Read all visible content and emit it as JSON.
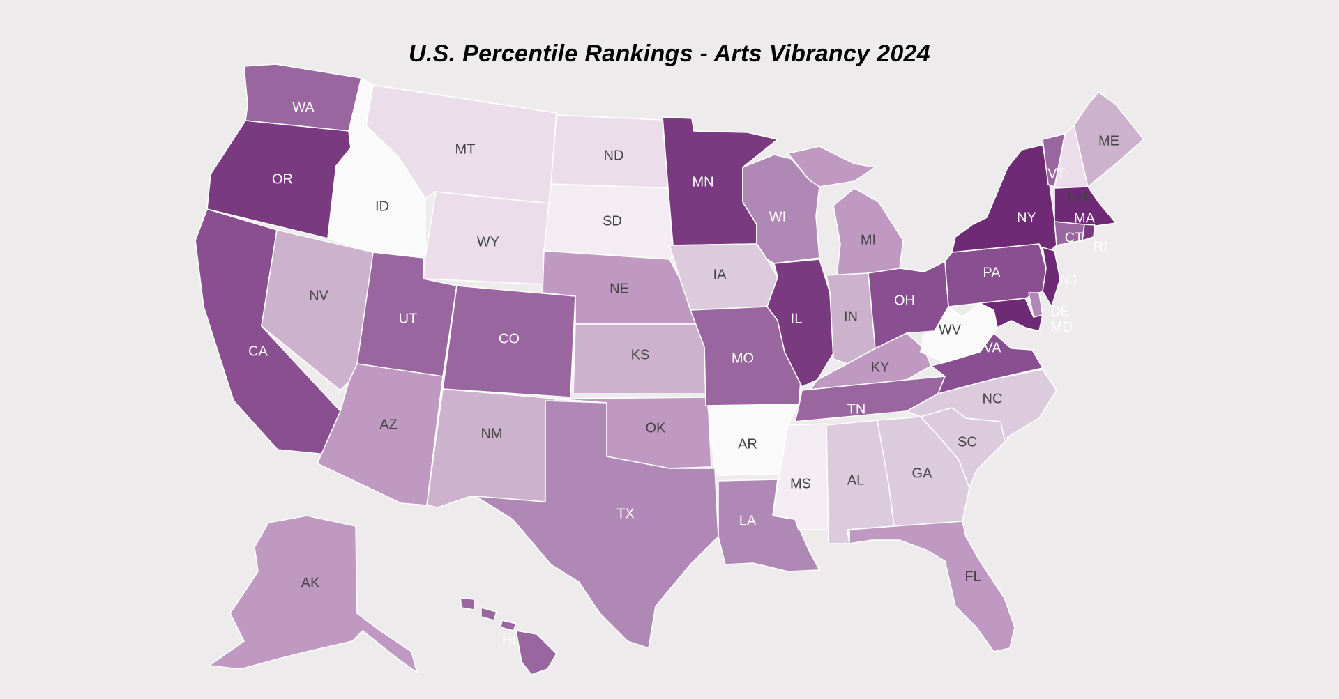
{
  "title": "U.S. Percentile Rankings - Arts Vibrancy 2024",
  "colors": {
    "background": "#edebec",
    "scale": [
      "#fbfafb",
      "#f3ecf2",
      "#ebdeea",
      "#dccbdc",
      "#cdb2cd",
      "#bf99c2",
      "#b088b5",
      "#9a66a0",
      "#8a4f90",
      "#7a3a80",
      "#6e2a75"
    ]
  },
  "states": [
    {
      "code": "WA",
      "label": "WA",
      "level": 7
    },
    {
      "code": "OR",
      "label": "OR",
      "level": 9
    },
    {
      "code": "CA",
      "label": "CA",
      "level": 8
    },
    {
      "code": "ID",
      "label": "ID",
      "level": 0
    },
    {
      "code": "NV",
      "label": "NV",
      "level": 4
    },
    {
      "code": "MT",
      "label": "MT",
      "level": 2
    },
    {
      "code": "WY",
      "label": "WY",
      "level": 2
    },
    {
      "code": "UT",
      "label": "UT",
      "level": 7
    },
    {
      "code": "AZ",
      "label": "AZ",
      "level": 5
    },
    {
      "code": "CO",
      "label": "CO",
      "level": 7
    },
    {
      "code": "NM",
      "label": "NM",
      "level": 4
    },
    {
      "code": "ND",
      "label": "ND",
      "level": 2
    },
    {
      "code": "SD",
      "label": "SD",
      "level": 1
    },
    {
      "code": "NE",
      "label": "NE",
      "level": 5
    },
    {
      "code": "KS",
      "label": "KS",
      "level": 4
    },
    {
      "code": "OK",
      "label": "OK",
      "level": 5
    },
    {
      "code": "TX",
      "label": "TX",
      "level": 6
    },
    {
      "code": "MN",
      "label": "MN",
      "level": 9
    },
    {
      "code": "IA",
      "label": "IA",
      "level": 3
    },
    {
      "code": "MO",
      "label": "MO",
      "level": 7
    },
    {
      "code": "AR",
      "label": "AR",
      "level": 0
    },
    {
      "code": "LA",
      "label": "LA",
      "level": 6
    },
    {
      "code": "WI",
      "label": "WI",
      "level": 6
    },
    {
      "code": "IL",
      "label": "IL",
      "level": 9
    },
    {
      "code": "MS",
      "label": "MS",
      "level": 1
    },
    {
      "code": "MI",
      "label": "MI",
      "level": 5
    },
    {
      "code": "IN",
      "label": "IN",
      "level": 4
    },
    {
      "code": "KY",
      "label": "KY",
      "level": 5
    },
    {
      "code": "TN",
      "label": "TN",
      "level": 7
    },
    {
      "code": "AL",
      "label": "AL",
      "level": 3
    },
    {
      "code": "OH",
      "label": "OH",
      "level": 8
    },
    {
      "code": "GA",
      "label": "GA",
      "level": 3
    },
    {
      "code": "FL",
      "label": "FL",
      "level": 5
    },
    {
      "code": "SC",
      "label": "SC",
      "level": 3
    },
    {
      "code": "NC",
      "label": "NC",
      "level": 3
    },
    {
      "code": "VA",
      "label": "VA",
      "level": 8
    },
    {
      "code": "WV",
      "label": "WV",
      "level": 0
    },
    {
      "code": "PA",
      "label": "PA",
      "level": 8
    },
    {
      "code": "NY",
      "label": "NY",
      "level": 10
    },
    {
      "code": "VT",
      "label": "VT",
      "level": 7
    },
    {
      "code": "NH",
      "label": "NH",
      "level": 2
    },
    {
      "code": "ME",
      "label": "ME",
      "level": 4
    },
    {
      "code": "MA",
      "label": "MA",
      "level": 10
    },
    {
      "code": "CT",
      "label": "CT",
      "level": 7
    },
    {
      "code": "RI",
      "label": "RI",
      "level": 9
    },
    {
      "code": "NJ",
      "label": "NJ",
      "level": 10
    },
    {
      "code": "DE",
      "label": "DE",
      "level": 6
    },
    {
      "code": "MD",
      "label": "MD",
      "level": 10
    },
    {
      "code": "AK",
      "label": "AK",
      "level": 5
    },
    {
      "code": "HI",
      "label": "HI",
      "level": 7
    }
  ]
}
